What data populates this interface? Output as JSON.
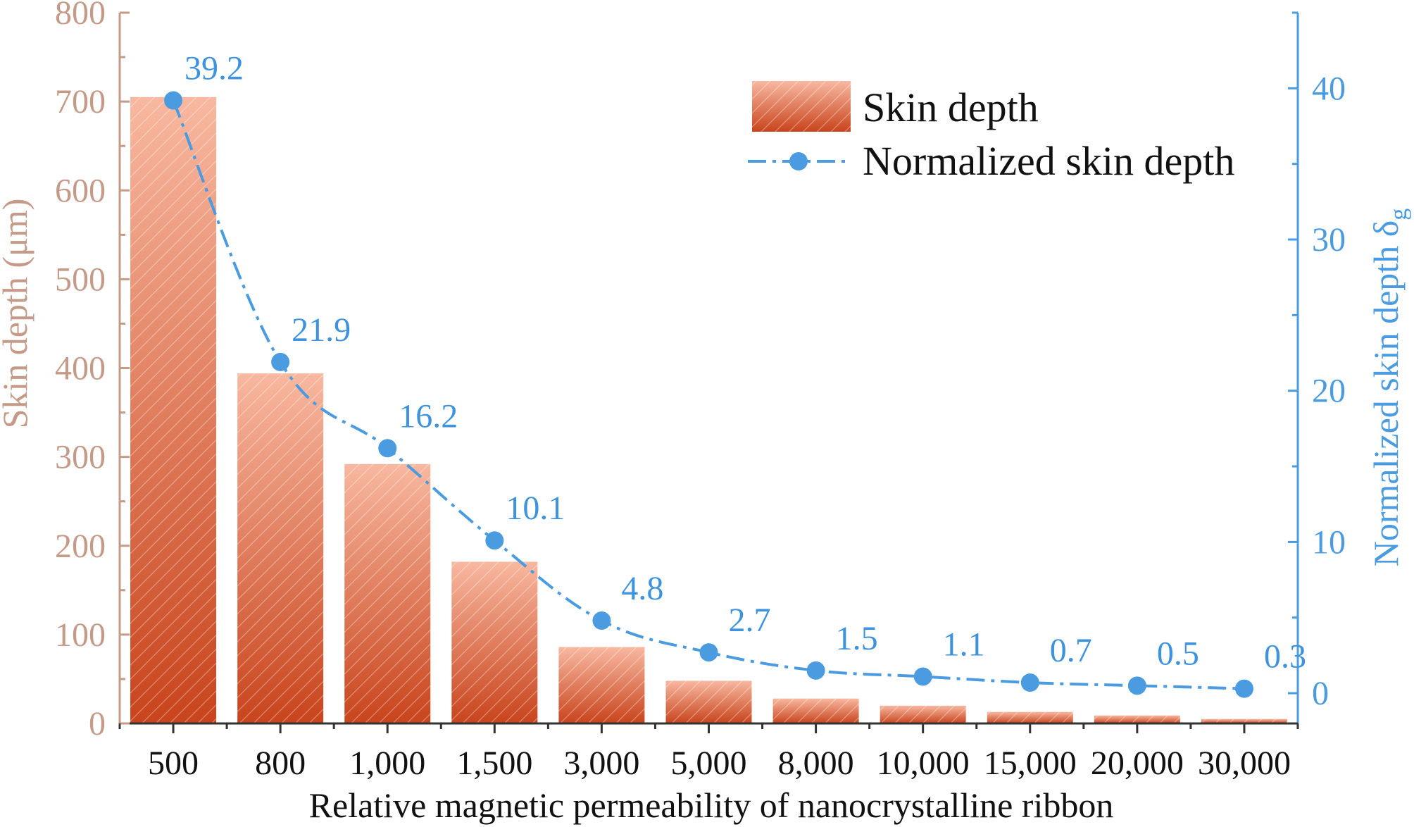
{
  "chart_data": {
    "type": "bar",
    "categories": [
      "500",
      "800",
      "1,000",
      "1,500",
      "3,000",
      "5,000",
      "8,000",
      "10,000",
      "15,000",
      "20,000",
      "30,000"
    ],
    "series": [
      {
        "name": "Skin depth",
        "axis": "left",
        "type": "bar",
        "values": [
          705,
          394,
          292,
          182,
          86,
          48,
          28,
          20,
          13,
          9,
          5
        ]
      },
      {
        "name": "Normalized skin depth",
        "axis": "right",
        "type": "line",
        "values": [
          39.2,
          21.9,
          16.2,
          10.1,
          4.8,
          2.7,
          1.5,
          1.1,
          0.7,
          0.5,
          0.3
        ],
        "labels": [
          "39.2",
          "21.9",
          "16.2",
          "10.1",
          "4.8",
          "2.7",
          "1.5",
          "1.1",
          "0.7",
          "0.5",
          "0.3"
        ]
      }
    ],
    "xlabel": "Relative magnetic permeability of nanocrystalline ribbon",
    "ylabel_left": "Skin depth (μm)",
    "ylabel_right": "Normalized skin depth δ",
    "ylabel_right_subscript": "g",
    "ylim_left": [
      0,
      800
    ],
    "ylim_right": [
      -2,
      45
    ],
    "yticks_left": [
      0,
      100,
      200,
      300,
      400,
      500,
      600,
      700,
      800
    ],
    "yticks_right": [
      0,
      10,
      20,
      30,
      40
    ],
    "legend": {
      "placement": "top-right",
      "entries": [
        "Skin depth",
        "Normalized skin depth"
      ]
    },
    "colors": {
      "bar_top": "#F8B8A0",
      "bar_bottom": "#C8441C",
      "line": "#4A9BE0",
      "point_label": "#3D93DE",
      "left_axis": "#C49A88",
      "right_axis": "#4A9BE0",
      "x_axis": "#333333"
    }
  }
}
